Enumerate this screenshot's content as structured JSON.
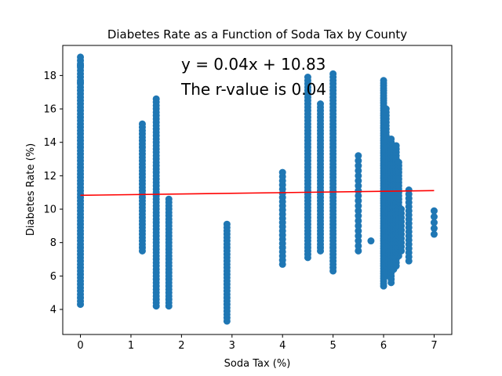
{
  "chart_data": {
    "type": "scatter",
    "title": "Diabetes Rate as a Function of Soda Tax by County",
    "xlabel": "Soda Tax (%)",
    "ylabel": "Diabetes Rate (%)",
    "xlim": [
      -0.35,
      7.35
    ],
    "ylim": [
      2.5,
      19.8
    ],
    "xticks": [
      0,
      1,
      2,
      3,
      4,
      5,
      6,
      7
    ],
    "yticks": [
      4,
      6,
      8,
      10,
      12,
      14,
      16,
      18
    ],
    "grid": false,
    "point_color": "#1f77b4",
    "line_color": "#ff0000",
    "regression": {
      "slope": 0.04,
      "intercept": 10.83,
      "x_range": [
        0,
        7
      ]
    },
    "annotation_lines": [
      "y = 0.04x + 10.83",
      "The r-value is 0.04"
    ],
    "groups": [
      {
        "x": 0,
        "min": 4.3,
        "max": 19.2,
        "step": 0.2,
        "extra": [
          17.6,
          18.6
        ]
      },
      {
        "x": 1.225,
        "min": 7.5,
        "max": 15.1,
        "step": 0.2,
        "extra": []
      },
      {
        "x": 1.5,
        "min": 4.2,
        "max": 16.7,
        "step": 0.2,
        "extra": []
      },
      {
        "x": 1.75,
        "min": 4.2,
        "max": 10.6,
        "step": 0.2,
        "extra": []
      },
      {
        "x": 2.9,
        "min": 3.3,
        "max": 9.1,
        "step": 0.2,
        "extra": []
      },
      {
        "x": 4.0,
        "min": 6.7,
        "max": 12.3,
        "step": 0.25,
        "extra": []
      },
      {
        "x": 4.5,
        "min": 7.1,
        "max": 18.0,
        "step": 0.2,
        "extra": []
      },
      {
        "x": 4.75,
        "min": 7.5,
        "max": 16.4,
        "step": 0.2,
        "extra": []
      },
      {
        "x": 5.0,
        "min": 6.3,
        "max": 18.2,
        "step": 0.2,
        "extra": []
      },
      {
        "x": 5.5,
        "min": 7.5,
        "max": 13.3,
        "step": 0.3,
        "extra": []
      },
      {
        "x": 5.75,
        "min": 8.1,
        "max": 8.1,
        "step": 1,
        "extra": []
      },
      {
        "x": 6.0,
        "min": 5.4,
        "max": 17.7,
        "step": 0.15,
        "extra": []
      },
      {
        "x": 6.05,
        "min": 6.0,
        "max": 16.0,
        "step": 0.2,
        "extra": []
      },
      {
        "x": 6.1,
        "min": 6.3,
        "max": 13.8,
        "step": 0.2,
        "extra": []
      },
      {
        "x": 6.15,
        "min": 5.6,
        "max": 14.3,
        "step": 0.2,
        "extra": []
      },
      {
        "x": 6.2,
        "min": 6.4,
        "max": 13.7,
        "step": 0.2,
        "extra": []
      },
      {
        "x": 6.25,
        "min": 6.6,
        "max": 13.8,
        "step": 0.2,
        "extra": []
      },
      {
        "x": 6.3,
        "min": 7.2,
        "max": 12.9,
        "step": 0.2,
        "extra": []
      },
      {
        "x": 6.35,
        "min": 7.5,
        "max": 10.1,
        "step": 0.25,
        "extra": []
      },
      {
        "x": 6.5,
        "min": 6.9,
        "max": 11.2,
        "step": 0.25,
        "extra": []
      },
      {
        "x": 7.0,
        "min": 8.5,
        "max": 9.9,
        "step": 0.35,
        "extra": []
      }
    ]
  }
}
